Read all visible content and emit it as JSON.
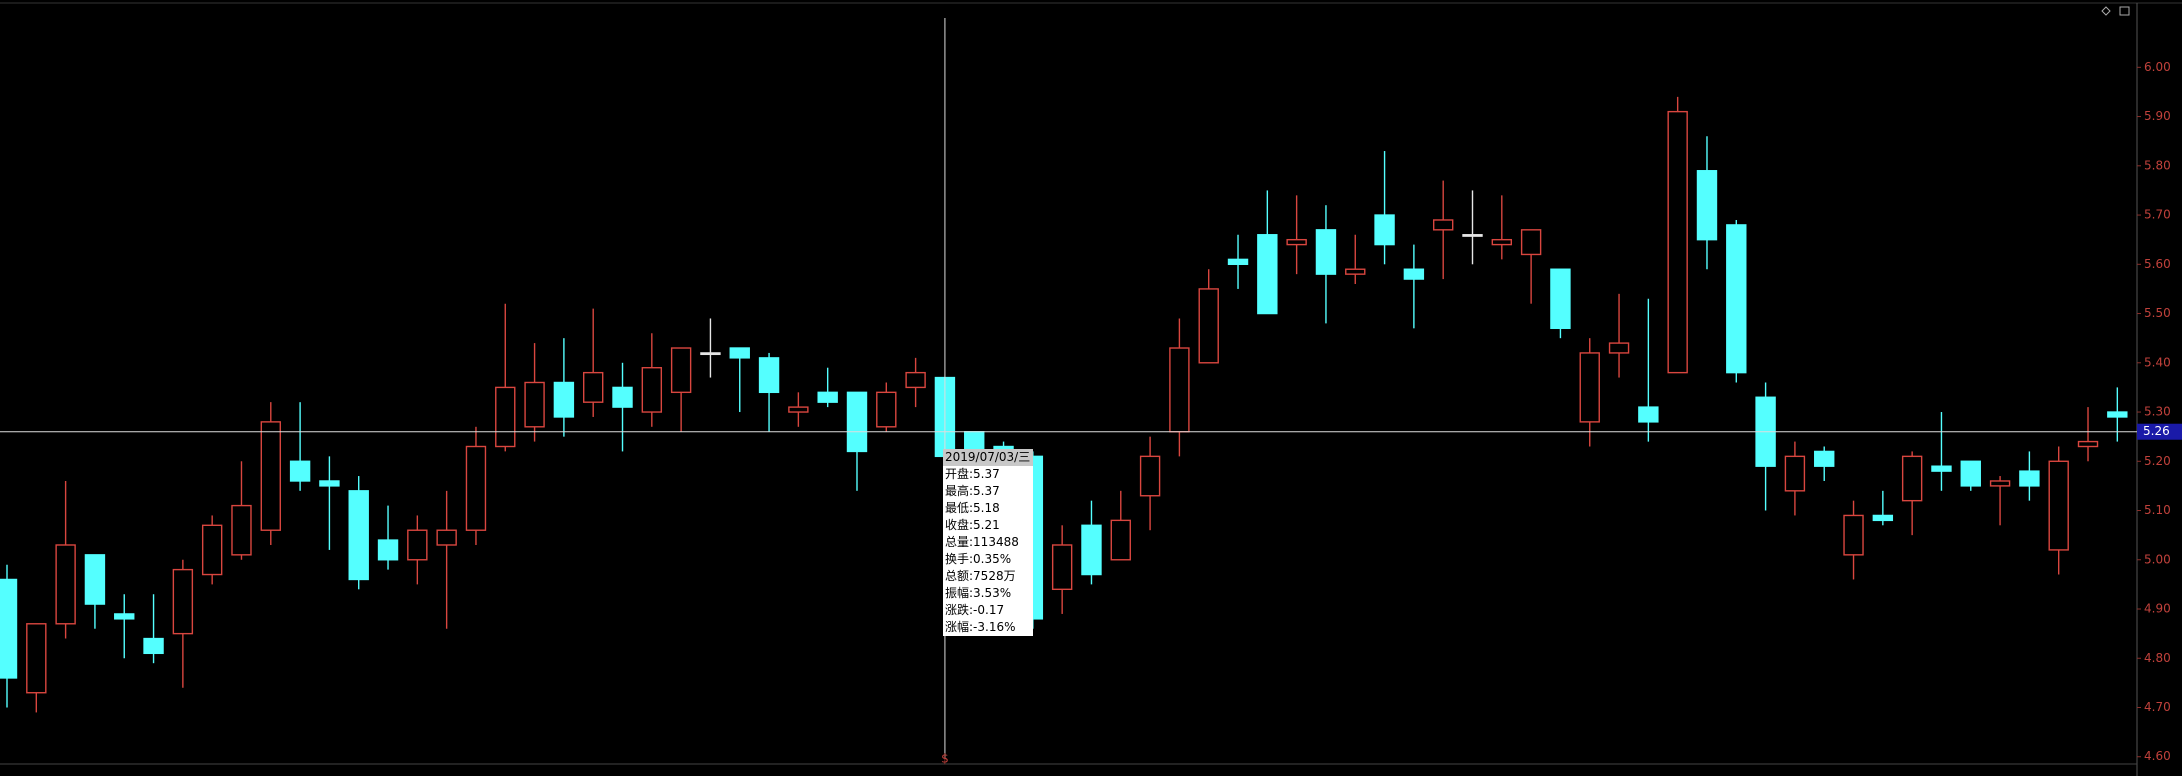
{
  "chart_data": {
    "type": "candlestick",
    "up_color": "#d9463f",
    "down_color": "#54ffff",
    "flat_color": "#e6e6e6",
    "open": [
      4.96,
      4.73,
      4.87,
      5.01,
      4.89,
      4.84,
      4.85,
      4.97,
      5.01,
      5.06,
      5.2,
      5.16,
      5.14,
      5.04,
      5.0,
      5.03,
      5.06,
      5.23,
      5.27,
      5.36,
      5.32,
      5.35,
      5.3,
      5.34,
      5.42,
      5.43,
      5.41,
      5.3,
      5.34,
      5.34,
      5.27,
      5.35,
      5.37,
      5.26,
      5.23,
      5.21,
      4.94,
      5.07,
      5.0,
      5.13,
      5.26,
      5.4,
      5.61,
      5.66,
      5.64,
      5.67,
      5.58,
      5.7,
      5.59,
      5.67,
      5.66,
      5.64,
      5.62,
      5.59,
      5.28,
      5.42,
      5.31,
      5.38,
      5.79,
      5.68,
      5.33,
      5.14,
      5.22,
      5.01,
      5.09,
      5.12,
      5.19,
      5.2,
      5.15,
      5.18,
      5.02,
      5.23,
      5.3
    ],
    "high": [
      4.99,
      4.87,
      5.16,
      5.01,
      4.93,
      4.93,
      5.0,
      5.09,
      5.2,
      5.32,
      5.32,
      5.21,
      5.17,
      5.11,
      5.09,
      5.14,
      5.27,
      5.52,
      5.44,
      5.45,
      5.51,
      5.4,
      5.46,
      5.43,
      5.49,
      5.43,
      5.42,
      5.34,
      5.39,
      5.34,
      5.36,
      5.41,
      5.37,
      5.26,
      5.24,
      5.22,
      5.07,
      5.12,
      5.14,
      5.25,
      5.49,
      5.59,
      5.66,
      5.75,
      5.74,
      5.72,
      5.66,
      5.83,
      5.64,
      5.77,
      5.75,
      5.74,
      5.67,
      5.59,
      5.45,
      5.54,
      5.53,
      5.94,
      5.86,
      5.69,
      5.36,
      5.24,
      5.23,
      5.12,
      5.14,
      5.22,
      5.3,
      5.2,
      5.17,
      5.22,
      5.23,
      5.31,
      5.35
    ],
    "low": [
      4.7,
      4.69,
      4.84,
      4.86,
      4.8,
      4.79,
      4.74,
      4.95,
      5.0,
      5.03,
      5.14,
      5.02,
      4.94,
      4.98,
      4.95,
      4.86,
      5.03,
      5.22,
      5.24,
      5.25,
      5.29,
      5.22,
      5.27,
      5.26,
      5.37,
      5.3,
      5.26,
      5.27,
      5.31,
      5.14,
      5.26,
      5.31,
      5.18,
      5.12,
      5.05,
      4.86,
      4.89,
      4.95,
      5.0,
      5.06,
      5.21,
      5.4,
      5.55,
      5.5,
      5.58,
      5.48,
      5.56,
      5.6,
      5.47,
      5.57,
      5.6,
      5.61,
      5.52,
      5.45,
      5.23,
      5.37,
      5.24,
      5.38,
      5.59,
      5.36,
      5.1,
      5.09,
      5.16,
      4.96,
      5.07,
      5.05,
      5.14,
      5.14,
      5.07,
      5.12,
      4.97,
      5.2,
      5.24
    ],
    "close": [
      4.76,
      4.87,
      5.03,
      4.91,
      4.88,
      4.81,
      4.98,
      5.07,
      5.11,
      5.28,
      5.16,
      5.15,
      4.96,
      5.0,
      5.06,
      5.06,
      5.23,
      5.35,
      5.36,
      5.29,
      5.38,
      5.31,
      5.39,
      5.43,
      5.42,
      5.41,
      5.34,
      5.31,
      5.32,
      5.22,
      5.34,
      5.38,
      5.21,
      5.17,
      5.12,
      4.88,
      5.03,
      4.97,
      5.08,
      5.21,
      5.43,
      5.55,
      5.6,
      5.5,
      5.65,
      5.58,
      5.59,
      5.64,
      5.57,
      5.69,
      5.66,
      5.65,
      5.67,
      5.47,
      5.42,
      5.44,
      5.28,
      5.91,
      5.65,
      5.38,
      5.19,
      5.21,
      5.19,
      5.09,
      5.08,
      5.21,
      5.18,
      5.15,
      5.16,
      5.15,
      5.2,
      5.24,
      5.29
    ],
    "ylim": [
      4.5609,
      6.1367
    ],
    "yticks": [
      {
        "value": 6,
        "label": "6.00"
      },
      {
        "value": 5.9,
        "label": "5.90"
      },
      {
        "value": 5.8,
        "label": "5.80"
      },
      {
        "value": 5.7,
        "label": "5.70"
      },
      {
        "value": 5.6,
        "label": "5.60"
      },
      {
        "value": 5.5,
        "label": "5.50"
      },
      {
        "value": 5.4,
        "label": "5.40"
      },
      {
        "value": 5.3,
        "label": "5.30"
      },
      {
        "value": 5.2,
        "label": "5.20"
      },
      {
        "value": 5.1,
        "label": "5.10"
      },
      {
        "value": 5,
        "label": "5.00"
      },
      {
        "value": 4.9,
        "label": "4.90"
      },
      {
        "value": 4.8,
        "label": "4.80"
      },
      {
        "value": 4.7,
        "label": "4.70"
      },
      {
        "value": 4.6,
        "label": "4.60"
      }
    ],
    "crosshair_price": 5.26,
    "crosshair_marker": "$",
    "tooltip": {
      "date": "2019/07/03/三",
      "rows": [
        "开盘:5.37",
        "最高:5.37",
        "最低:5.18",
        "收盘:5.21",
        "总量:113488",
        "换手:0.35%",
        "总额:7528万",
        "振幅:3.53%",
        "涨跌:-0.17",
        "涨幅:-3.16%"
      ]
    }
  }
}
